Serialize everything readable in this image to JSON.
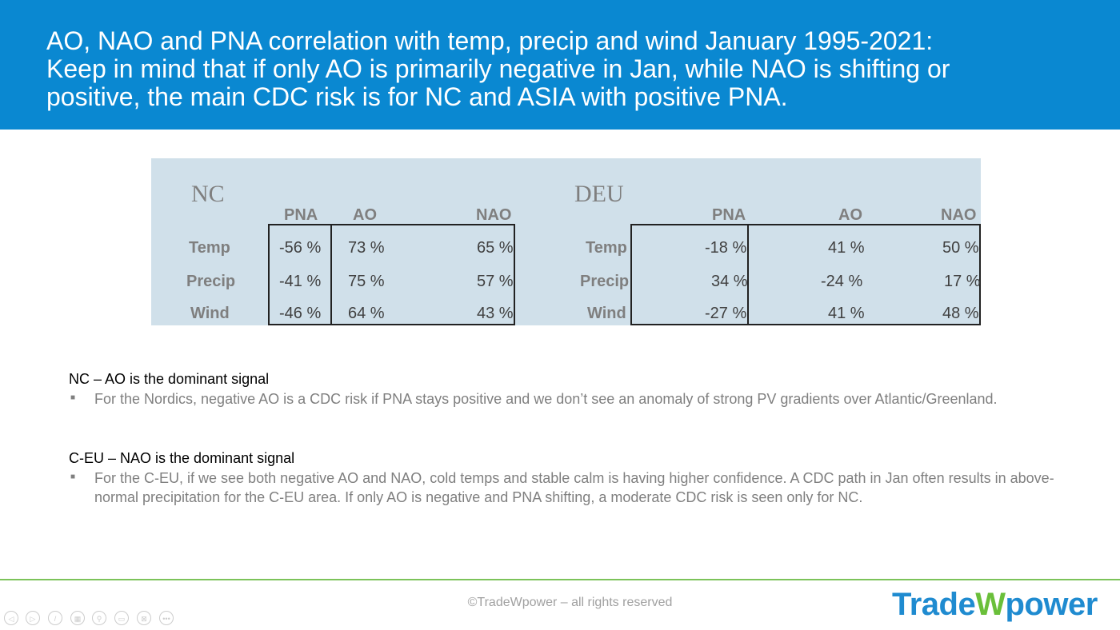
{
  "header": {
    "line1": "AO, NAO and PNA correlation with temp, precip and wind January 1995-2021:",
    "line2": "Keep in mind that if only AO is primarily negative in Jan, while NAO is shifting or",
    "line3": "positive, the main CDC risk is for NC and ASIA with positive PNA."
  },
  "nc": {
    "title": "NC",
    "cols": [
      "PNA",
      "AO",
      "NAO"
    ],
    "rows": [
      {
        "label": "Temp",
        "vals": [
          "-56 %",
          "73 %",
          "65 %"
        ]
      },
      {
        "label": "Precip",
        "vals": [
          "-41 %",
          "75 %",
          "57 %"
        ]
      },
      {
        "label": "Wind",
        "vals": [
          "-46 %",
          "64 %",
          "43 %"
        ]
      }
    ]
  },
  "deu": {
    "title": "DEU",
    "cols": [
      "PNA",
      "AO",
      "NAO"
    ],
    "rows": [
      {
        "label": "Temp",
        "vals": [
          "-18 %",
          "41 %",
          "50 %"
        ]
      },
      {
        "label": "Precip",
        "vals": [
          "34 %",
          "-24 %",
          "17 %"
        ]
      },
      {
        "label": "Wind",
        "vals": [
          "-27 %",
          "41 %",
          "48 %"
        ]
      }
    ]
  },
  "notes": [
    {
      "heading": "NC – AO is the dominant signal",
      "bullet": "For the Nordics, negative AO is a CDC risk if PNA stays positive and we don’t see an anomaly of strong PV gradients over Atlantic/Greenland."
    },
    {
      "heading": "C-EU – NAO is the dominant signal",
      "bullet": "For the C-EU, if we see both negative AO and NAO, cold temps and stable calm is having higher confidence. A CDC path in Jan often results in above-normal precipitation for the C-EU area. If only AO is negative and PNA shifting, a moderate CDC risk is seen only for NC."
    }
  ],
  "footer": {
    "copyright": "©TradeWpower – all rights reserved",
    "logo_a": "Trade",
    "logo_w": "W",
    "logo_b": "power"
  },
  "controls": [
    "previous-icon",
    "next-icon",
    "pen-icon",
    "slides-icon",
    "zoom-icon",
    "subtitles-icon",
    "camera-off-icon",
    "more-icon"
  ]
}
